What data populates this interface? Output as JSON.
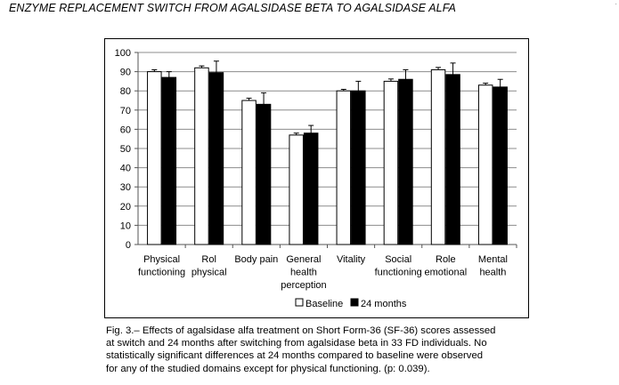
{
  "header": {
    "running_title": "ENZYME REPLACEMENT SWITCH FROM AGALSIDASE BETA TO AGALSIDASE ALFA"
  },
  "chart_data": {
    "type": "bar",
    "categories": [
      [
        "Physical",
        "functioning"
      ],
      [
        "Rol",
        "physical"
      ],
      [
        "Body pain"
      ],
      [
        "General",
        "health",
        "perception"
      ],
      [
        "Vitality"
      ],
      [
        "Social",
        "functioning"
      ],
      [
        "Role",
        "emotional"
      ],
      [
        "Mental",
        "health"
      ]
    ],
    "series": [
      {
        "name": "Baseline",
        "color": "#ffffff",
        "values": [
          90,
          92,
          75,
          57,
          80,
          85,
          91,
          83
        ],
        "error": [
          1,
          1,
          1.2,
          1,
          0.8,
          1.2,
          1.2,
          1
        ]
      },
      {
        "name": "24 months",
        "color": "#000000",
        "values": [
          87,
          89.5,
          73,
          58,
          80,
          86,
          88.5,
          82
        ],
        "error": [
          3,
          6,
          6,
          4,
          5,
          5,
          6,
          4
        ]
      }
    ],
    "yticks": [
      0,
      10,
      20,
      30,
      40,
      50,
      60,
      70,
      80,
      90,
      100
    ],
    "ylim": [
      0,
      100
    ],
    "grid": true,
    "legend": "bottom-center"
  },
  "caption": {
    "text": "Fig. 3.– Effects of agalsidase alfa treatment on Short Form-36 (SF-36) scores assessed\n    at switch and 24 months after switching from agalsidase beta in 33 FD individuals. No\n    statistically significant differences at 24 months compared to baseline were observed\n    for any of the studied domains except for physical functioning. (p: 0.039)."
  }
}
